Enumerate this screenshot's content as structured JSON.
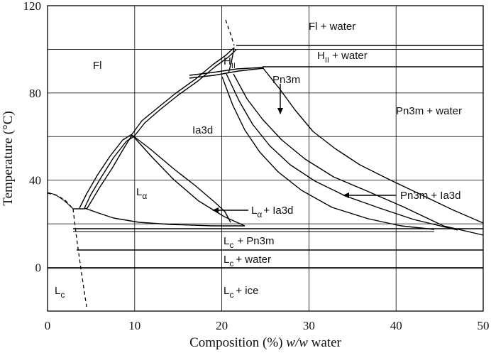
{
  "chart_data": {
    "type": "phase-diagram",
    "xlabel": "Composition (%) w/w water",
    "ylabel": "Temperature (°C)",
    "xlim": [
      0,
      50
    ],
    "ylim": [
      -20,
      120
    ],
    "x_ticks": [
      "0",
      "10",
      "20",
      "30",
      "40",
      "50"
    ],
    "y_ticks": [
      "0",
      "40",
      "80",
      "120"
    ],
    "grid": true,
    "phase_labels": {
      "fl": "Fl",
      "fl_water": "Fl + water",
      "hii": "H",
      "hii_sub": "II",
      "hii_water": "H",
      "hii_water_sub": "II",
      "hii_water_rest": " + water",
      "pn3m": "Pn3m",
      "pn3m_water": "Pn3m + water",
      "ia3d": "Ia3d",
      "la": "L",
      "la_sub": "α",
      "la_ia3d": "L",
      "la_ia3d_sub": "α",
      "la_ia3d_rest": "+ Ia3d",
      "pn3m_ia3d": "Pn3m + Ia3d",
      "lc_pn3m": "L",
      "lc_pn3m_sub": "c",
      "lc_pn3m_rest": "+  Pn3m",
      "lc_water": "L",
      "lc_water_sub": "c",
      "lc_water_rest": "+ water",
      "lc": "L",
      "lc_sub": "c",
      "lc_ice": "L",
      "lc_ice_sub": "c",
      "lc_ice_rest": "+  ice"
    }
  }
}
